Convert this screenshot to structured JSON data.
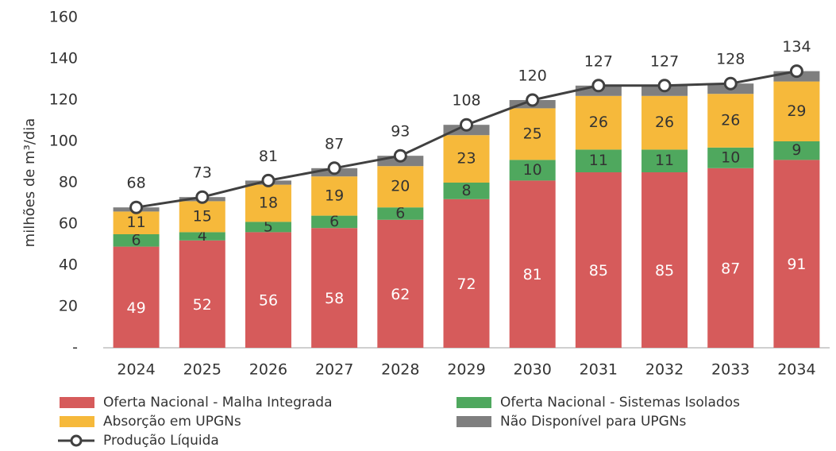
{
  "chart_data": {
    "type": "bar",
    "stacked": true,
    "ylabel": "milhões de m³/dia",
    "categories": [
      "2024",
      "2025",
      "2026",
      "2027",
      "2028",
      "2029",
      "2030",
      "2031",
      "2032",
      "2033",
      "2034"
    ],
    "ylim": [
      0,
      160
    ],
    "yticks": [
      {
        "value": 0,
        "label": "-"
      },
      20,
      40,
      60,
      80,
      100,
      120,
      140,
      160
    ],
    "series": [
      {
        "name": "Oferta Nacional - Malha Integrada",
        "color": "#d65b5b",
        "label_color": "#ffffff",
        "values": [
          49,
          52,
          56,
          58,
          62,
          72,
          81,
          85,
          85,
          87,
          91
        ]
      },
      {
        "name": "Oferta Nacional - Sistemas Isolados",
        "color": "#4fa85e",
        "label_color": "#333333",
        "values": [
          6,
          4,
          5,
          6,
          6,
          8,
          10,
          11,
          11,
          10,
          9
        ]
      },
      {
        "name": "Absorção em UPGNs",
        "color": "#f6b93b",
        "label_color": "#333333",
        "values": [
          11,
          15,
          18,
          19,
          20,
          23,
          25,
          26,
          26,
          26,
          29
        ]
      },
      {
        "name": "Não Disponível para UPGNs",
        "color": "#7f7f7f",
        "labels": false,
        "values": [
          2,
          2,
          2,
          4,
          5,
          5,
          4,
          5,
          5,
          5,
          5
        ]
      },
      {
        "name": "Produção Líquida",
        "type": "line",
        "color": "#404040",
        "label_color": "#333333",
        "values": [
          68,
          73,
          81,
          87,
          93,
          108,
          120,
          127,
          127,
          128,
          134
        ]
      }
    ]
  }
}
